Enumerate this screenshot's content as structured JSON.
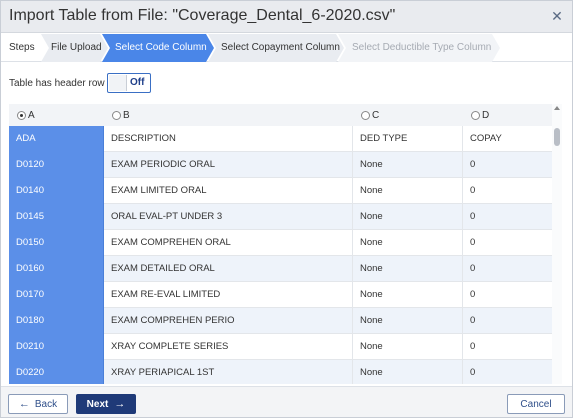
{
  "dialog": {
    "title": "Import Table from File: \"Coverage_Dental_6-2020.csv\""
  },
  "steps": {
    "label": "Steps",
    "items": [
      {
        "label": "File Upload",
        "state": "done"
      },
      {
        "label": "Select Code Column",
        "state": "active"
      },
      {
        "label": "Select Copayment Column",
        "state": "pending"
      },
      {
        "label": "Select Deductible Type Column",
        "state": "disabled"
      }
    ]
  },
  "header_row": {
    "label": "Table has header row",
    "state": "Off"
  },
  "columns": [
    {
      "letter": "A",
      "selected": true
    },
    {
      "letter": "B",
      "selected": false
    },
    {
      "letter": "C",
      "selected": false
    },
    {
      "letter": "D",
      "selected": false
    }
  ],
  "rows": [
    [
      "ADA",
      "DESCRIPTION",
      "DED TYPE",
      "COPAY"
    ],
    [
      "D0120",
      "EXAM PERIODIC ORAL",
      "None",
      "0"
    ],
    [
      "D0140",
      "EXAM LIMITED ORAL",
      "None",
      "0"
    ],
    [
      "D0145",
      "ORAL EVAL-PT UNDER 3",
      "None",
      "0"
    ],
    [
      "D0150",
      "EXAM COMPREHEN ORAL",
      "None",
      "0"
    ],
    [
      "D0160",
      "EXAM DETAILED ORAL",
      "None",
      "0"
    ],
    [
      "D0170",
      "EXAM RE-EVAL LIMITED",
      "None",
      "0"
    ],
    [
      "D0180",
      "EXAM COMPREHEN PERIO",
      "None",
      "0"
    ],
    [
      "D0210",
      "XRAY COMPLETE SERIES",
      "None",
      "0"
    ],
    [
      "D0220",
      "XRAY PERIAPICAL 1ST",
      "None",
      "0"
    ]
  ],
  "footer": {
    "back_label": "Back",
    "next_label": "Next",
    "cancel_label": "Cancel"
  },
  "colors": {
    "accent": "#5b8fe8",
    "primary_button": "#1f3a78",
    "row_alt": "#eef3fa"
  },
  "icons": {
    "close": "close-icon",
    "back": "arrow-left-icon",
    "next": "arrow-right-icon"
  }
}
